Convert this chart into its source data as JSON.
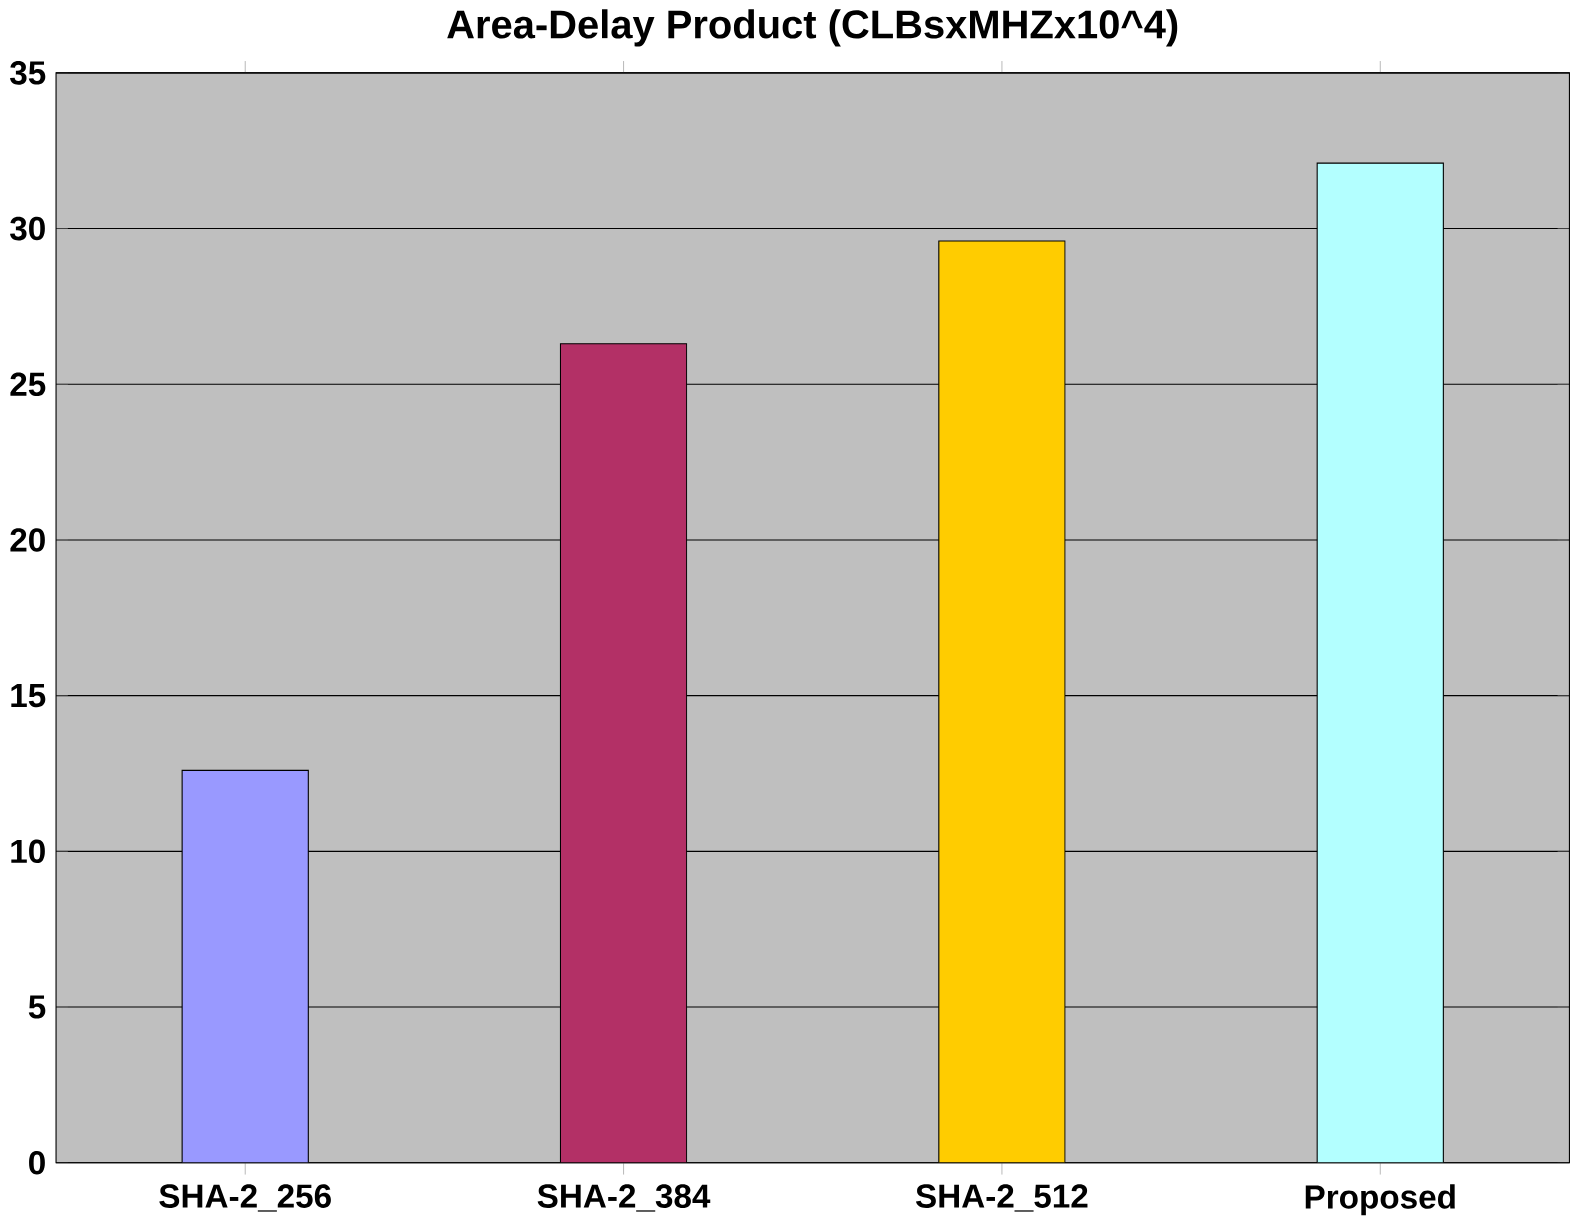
{
  "chart_data": {
    "type": "bar",
    "title": "Area-Delay Product (CLBsxMHZx10^4)",
    "categories": [
      "SHA-2_256",
      "SHA-2_384",
      "SHA-2_512",
      "Proposed"
    ],
    "values": [
      12.6,
      26.3,
      29.6,
      32.1
    ],
    "colors": [
      "#9999ff",
      "#b33066",
      "#ffcc00",
      "#b3ffff"
    ],
    "ylim": [
      0,
      35
    ],
    "yticks": [
      0,
      5,
      10,
      15,
      20,
      25,
      30,
      35
    ],
    "grid": "y"
  }
}
